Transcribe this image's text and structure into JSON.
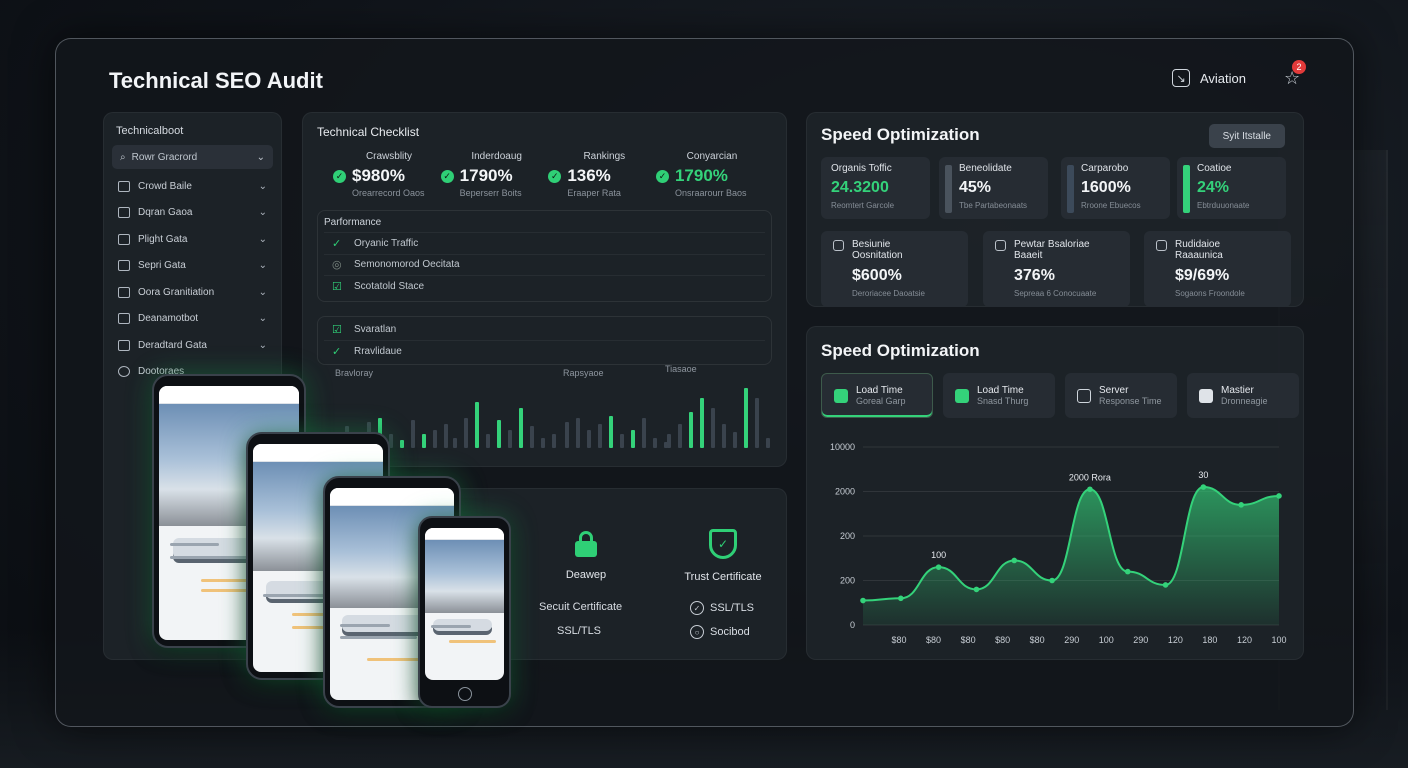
{
  "header": {
    "title": "Technical SEO Audit",
    "account_label": "Aviation",
    "notification_count": "2",
    "icons": [
      "aviation-square-icon",
      "star-icon"
    ]
  },
  "sidebar": {
    "title": "Technicalboot",
    "search_label": "Rowr Gracrord",
    "items": [
      {
        "label": "Crowd Baile"
      },
      {
        "label": "Dqran Gaoa"
      },
      {
        "label": "Plight Gata"
      },
      {
        "label": "Sepri Gata"
      },
      {
        "label": "Oora Granitiation"
      },
      {
        "label": "Deanamotbot"
      },
      {
        "label": "Deradtard Gata"
      },
      {
        "label": "Dootoraes"
      }
    ]
  },
  "checklist": {
    "title": "Technical Checklist",
    "metrics": [
      {
        "label": "Crawsblity",
        "value": "$980%",
        "sub": "Orearrecord Oaos"
      },
      {
        "label": "Inderdoaug",
        "value": "1790%",
        "sub": "Beperserr Boits"
      },
      {
        "label": "Rankings",
        "value": "136%",
        "sub": "Eraaper Rata"
      },
      {
        "label": "Conyarcian",
        "value": "1790%",
        "sub": "Onsraarourr Baos"
      }
    ],
    "performance": {
      "title": "Parformance",
      "items": [
        "Oryanic Traffic",
        "Semonomorod Oecitata",
        "Scotatold Stace"
      ]
    },
    "performance2": {
      "items": [
        "Svaratlan",
        "Rravlidaue"
      ]
    },
    "bar_groups": [
      {
        "label": "Bravloray"
      },
      {
        "label": ""
      },
      {
        "label": "Rapsyaoe"
      },
      {
        "label": "Tiasaoe"
      }
    ]
  },
  "security": {
    "lock_label": "Deawep",
    "shield_label": "Trust Certificate",
    "cert_line1": "Secuit Certificate",
    "cert_line2": "SSL/TLS",
    "ssl_label": "SSL/TLS",
    "socibod_label": "Socibod"
  },
  "speed_top": {
    "title": "Speed Optimization",
    "button_label": "Syit Itstalle",
    "kpis": [
      {
        "label": "Organis Toffic",
        "value": "24.3200",
        "sub": "Reomtert Garcole"
      },
      {
        "label": "Beneolidate",
        "value": "45%",
        "sub": "Tbe Partabeonaats"
      },
      {
        "label": "Carparobo",
        "value": "1600%",
        "sub": "Rroone Ebuecos"
      },
      {
        "label": "Coatioe",
        "value": "24%",
        "sub": "Ebtrduuonaate"
      }
    ],
    "kpis2": [
      {
        "label": "Besiunie",
        "label2": "Oosnitation",
        "value": "$600%",
        "sub": "Deroriacee Daoatsie"
      },
      {
        "label": "Pewtar Bsaloriae",
        "label2": "Baaeit",
        "value": "376%",
        "sub": "Sepreaa 6 Conocuaate"
      },
      {
        "label": "Rudidaioe",
        "label2": "Raaaunica",
        "value": "$9/69%",
        "sub": "Sogaons Froondole"
      }
    ]
  },
  "speed_chart": {
    "title": "Speed Optimization",
    "tabs": [
      {
        "t1": "Load Time",
        "t2": "Goreal Garp"
      },
      {
        "t1": "Load Time",
        "t2": "Snasd Thurg"
      },
      {
        "t1": "Server",
        "t2": "Response Time"
      },
      {
        "t1": "Mastier",
        "t2": "Dronneagie"
      }
    ]
  },
  "chart_data": {
    "type": "area",
    "title": "",
    "x": [
      "$80",
      "$80",
      "$80",
      "$80",
      "$80",
      "290",
      "100",
      "290",
      "120",
      "180",
      "120",
      "100"
    ],
    "y_ticks": [
      "10000",
      "2000",
      "200",
      "200",
      "0"
    ],
    "series": [
      {
        "values": [
          0.55,
          0.6,
          1.3,
          0.8,
          1.45,
          1.0,
          3.05,
          1.2,
          0.9,
          3.1,
          2.7,
          2.9
        ]
      }
    ],
    "annotations": [
      {
        "label": "100",
        "index": 2
      },
      {
        "label": "2000 Rora",
        "index": 6
      },
      {
        "label": "30",
        "index": 9
      }
    ],
    "ylim": [
      0,
      4
    ],
    "grid": true,
    "accent": "#34d27a"
  },
  "colors": {
    "accent": "#34d27a",
    "panel": "#1e2329",
    "badge": "#e23a3a"
  }
}
